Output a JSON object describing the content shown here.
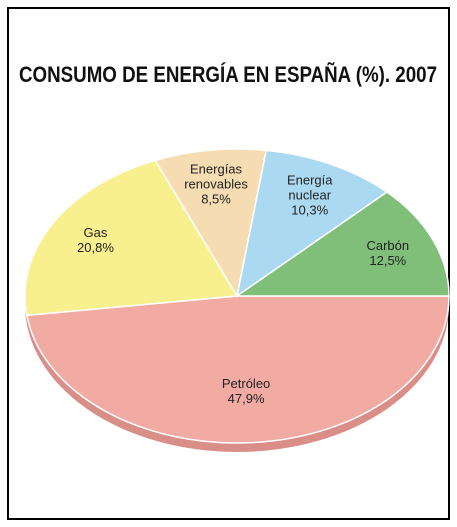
{
  "chart_data": {
    "type": "pie",
    "title": "CONSUMO DE ENERGÍA EN ESPAÑA (%). 2007",
    "categories": [
      "Petróleo",
      "Gas",
      "Energías renovables",
      "Energía nuclear",
      "Carbón"
    ],
    "values": [
      47.9,
      20.8,
      8.5,
      10.3,
      12.5
    ],
    "value_labels": [
      "47,9%",
      "20,8%",
      "8,5%",
      "10,3%",
      "12,5%"
    ],
    "colors": [
      "#f2aba3",
      "#f8f08e",
      "#f6dcb2",
      "#acd9f2",
      "#80bf7a"
    ]
  }
}
